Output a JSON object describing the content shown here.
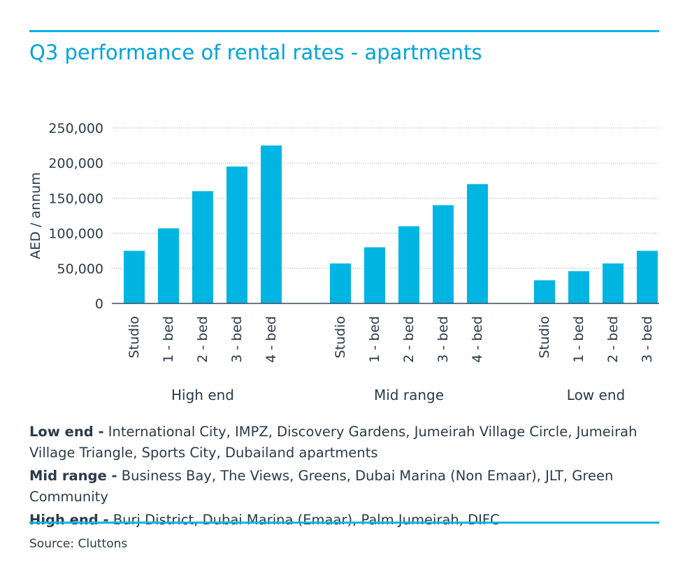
{
  "title": "Q3 performance of rental rates - apartments",
  "source": "Source: Cluttons",
  "notes": [
    {
      "label": "Low end -",
      "text": " International City, IMPZ, Discovery Gardens, Jumeirah Village Circle, Jumeirah Village Triangle, Sports City, Dubailand apartments"
    },
    {
      "label": "Mid range -",
      "text": " Business Bay, The Views, Greens, Dubai Marina (Non Emaar), JLT, Green Community"
    },
    {
      "label": "High end -",
      "text": " Burj District, Dubai Marina (Emaar), Palm Jumeirah, DIFC"
    }
  ],
  "colors": {
    "accent": "#00b5e2",
    "bar": "#00b5e2",
    "text": "#2b3a4a"
  },
  "chart_data": {
    "type": "bar",
    "title": "Q3 performance of rental rates - apartments",
    "ylabel": "AED / annum",
    "ylim": [
      0,
      250000
    ],
    "yticks": [
      0,
      50000,
      100000,
      150000,
      200000,
      250000
    ],
    "ytick_labels": [
      "0",
      "50,000",
      "100,000",
      "150,000",
      "200,000",
      "250,000"
    ],
    "grid": true,
    "groups": [
      {
        "name": "High end",
        "categories": [
          "Studio",
          "1 - bed",
          "2 - bed",
          "3 - bed",
          "4 - bed"
        ],
        "values": [
          75000,
          107000,
          160000,
          195000,
          225000
        ]
      },
      {
        "name": "Mid range",
        "categories": [
          "Studio",
          "1 - bed",
          "2 - bed",
          "3 - bed",
          "4 - bed"
        ],
        "values": [
          57000,
          80000,
          110000,
          140000,
          170000
        ]
      },
      {
        "name": "Low end",
        "categories": [
          "Studio",
          "1 - bed",
          "2 - bed",
          "3 - bed"
        ],
        "values": [
          33000,
          46000,
          57000,
          75000
        ]
      }
    ]
  }
}
